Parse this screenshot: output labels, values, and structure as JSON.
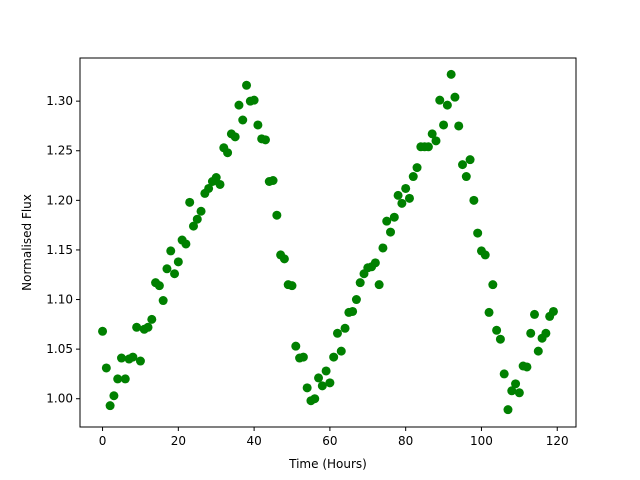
{
  "chart_data": {
    "type": "scatter",
    "xlabel": "Time (Hours)",
    "ylabel": "Normalised Flux",
    "xlim": [
      -5.95,
      124.95
    ],
    "ylim": [
      0.9715,
      1.3435
    ],
    "xticks": [
      0,
      20,
      40,
      60,
      80,
      100,
      120
    ],
    "xtick_labels": [
      "0",
      "20",
      "40",
      "60",
      "80",
      "100",
      "120"
    ],
    "yticks": [
      1.0,
      1.05,
      1.1,
      1.15,
      1.2,
      1.25,
      1.3
    ],
    "ytick_labels": [
      "1.00",
      "1.05",
      "1.10",
      "1.15",
      "1.20",
      "1.25",
      "1.30"
    ],
    "grid": false,
    "marker_color": "#008000",
    "series": [
      {
        "x": [
          0,
          1,
          2,
          3,
          4,
          5,
          6,
          7,
          8,
          9,
          10,
          11,
          12,
          13,
          14,
          15,
          16,
          17,
          18,
          19,
          20,
          21,
          22,
          23,
          24,
          25,
          26,
          27,
          28,
          29,
          30,
          31,
          32,
          33,
          34,
          35,
          36,
          37,
          38,
          39,
          40,
          41,
          42,
          43,
          44,
          45,
          46,
          47,
          48,
          49,
          50,
          51,
          52,
          53,
          54,
          55,
          56,
          57,
          58,
          59,
          60,
          61,
          62,
          63,
          64,
          65,
          66,
          67,
          68,
          69,
          70,
          71,
          72,
          73,
          74,
          75,
          76,
          77,
          78,
          79,
          80,
          81,
          82,
          83,
          84,
          85,
          86,
          87,
          88,
          89,
          90,
          91,
          92,
          93,
          94,
          95,
          96,
          97,
          98,
          99,
          100,
          101,
          102,
          103,
          104,
          105,
          106,
          107,
          108,
          109,
          110,
          111,
          112,
          113,
          114,
          115,
          116,
          117,
          118,
          119
        ],
        "y": [
          1.068,
          1.031,
          0.993,
          1.003,
          1.02,
          1.041,
          1.02,
          1.04,
          1.042,
          1.072,
          1.038,
          1.07,
          1.072,
          1.08,
          1.117,
          1.114,
          1.099,
          1.131,
          1.149,
          1.126,
          1.138,
          1.16,
          1.156,
          1.198,
          1.174,
          1.181,
          1.189,
          1.207,
          1.212,
          1.219,
          1.223,
          1.216,
          1.253,
          1.248,
          1.267,
          1.264,
          1.296,
          1.281,
          1.316,
          1.3,
          1.301,
          1.276,
          1.262,
          1.261,
          1.219,
          1.22,
          1.185,
          1.145,
          1.141,
          1.115,
          1.114,
          1.053,
          1.041,
          1.042,
          1.011,
          0.998,
          1.0,
          1.021,
          1.013,
          1.028,
          1.016,
          1.042,
          1.066,
          1.048,
          1.071,
          1.087,
          1.088,
          1.1,
          1.117,
          1.126,
          1.132,
          1.133,
          1.137,
          1.115,
          1.152,
          1.179,
          1.168,
          1.183,
          1.205,
          1.197,
          1.212,
          1.202,
          1.224,
          1.233,
          1.254,
          1.254,
          1.254,
          1.267,
          1.26,
          1.301,
          1.276,
          1.296,
          1.327,
          1.304,
          1.275,
          1.236,
          1.224,
          1.241,
          1.2,
          1.167,
          1.149,
          1.145,
          1.087,
          1.115,
          1.069,
          1.06,
          1.025,
          0.989,
          1.008,
          1.015,
          1.006,
          1.033,
          1.032,
          1.066,
          1.085,
          1.048,
          1.061,
          1.066,
          1.083,
          1.088
        ]
      }
    ]
  }
}
